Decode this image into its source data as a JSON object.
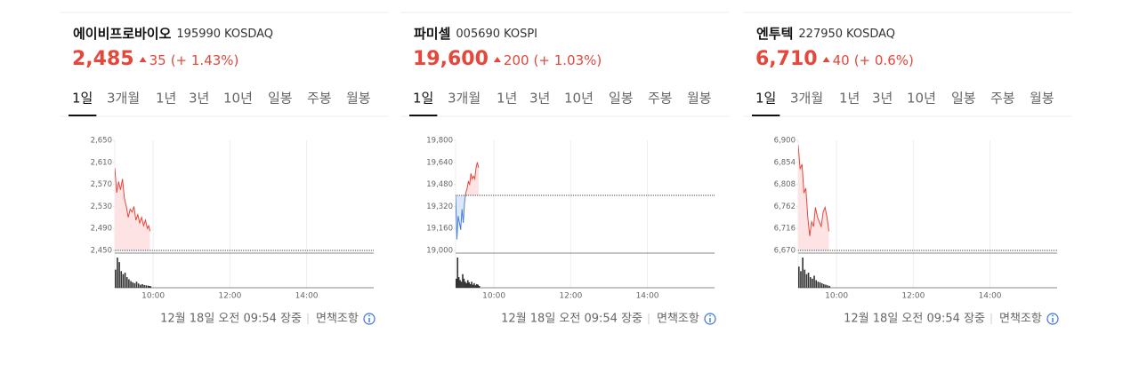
{
  "widgets": [
    {
      "name": "에이비프로바이오",
      "code": "195990",
      "market": "KOSDAQ",
      "price": "2,485",
      "change": "35",
      "change_rate": "(+ 1.43%)",
      "tabs": [
        "1일",
        "3개월",
        "1년",
        "3년",
        "10년",
        "일봉",
        "주봉",
        "월봉"
      ],
      "chart": {
        "type": "line",
        "ylim": [
          2450,
          2650
        ],
        "yticks": [
          {
            "value": 2450,
            "label": "2,450"
          },
          {
            "value": 2490,
            "label": "2,490"
          },
          {
            "value": 2530,
            "label": "2,530"
          },
          {
            "value": 2570,
            "label": "2,570"
          },
          {
            "value": 2610,
            "label": "2,610"
          },
          {
            "value": 2650,
            "label": "2,650"
          }
        ],
        "xlim": [
          540,
          945
        ],
        "xticks": [
          {
            "value": 600,
            "label": "10:00"
          },
          {
            "value": 720,
            "label": "12:00"
          },
          {
            "value": 840,
            "label": "14:00"
          }
        ],
        "x": [
          540,
          543,
          546,
          549,
          552,
          555,
          558,
          561,
          564,
          567,
          570,
          573,
          576,
          579,
          582,
          585,
          588,
          591,
          593,
          595
        ],
        "values": [
          2600,
          2555,
          2575,
          2560,
          2580,
          2545,
          2530,
          2510,
          2525,
          2520,
          2530,
          2505,
          2515,
          2500,
          2510,
          2495,
          2505,
          2490,
          2495,
          2485
        ],
        "base": 2450,
        "volume": [
          60,
          100,
          85,
          55,
          45,
          50,
          35,
          28,
          22,
          18,
          15,
          20,
          14,
          10,
          12,
          9,
          8,
          7,
          6,
          5
        ]
      },
      "footer": {
        "time": "12월 18일 오전 09:54 장중",
        "disclaimer": "면책조항"
      }
    },
    {
      "name": "파미셀",
      "code": "005690",
      "market": "KOSPI",
      "price": "19,600",
      "change": "200",
      "change_rate": "(+ 1.03%)",
      "tabs": [
        "1일",
        "3개월",
        "1년",
        "3년",
        "10년",
        "일봉",
        "주봉",
        "월봉"
      ],
      "chart": {
        "type": "line",
        "ylim": [
          19000,
          19800
        ],
        "yticks": [
          {
            "value": 19000,
            "label": "19,000"
          },
          {
            "value": 19160,
            "label": "19,160"
          },
          {
            "value": 19320,
            "label": "19,320"
          },
          {
            "value": 19480,
            "label": "19,480"
          },
          {
            "value": 19640,
            "label": "19,640"
          },
          {
            "value": 19800,
            "label": "19,800"
          }
        ],
        "xlim": [
          540,
          945
        ],
        "xticks": [
          {
            "value": 600,
            "label": "10:00"
          },
          {
            "value": 720,
            "label": "12:00"
          },
          {
            "value": 840,
            "label": "14:00"
          }
        ],
        "x": [
          540,
          542,
          544,
          546,
          548,
          550,
          552,
          554,
          556,
          558,
          560,
          562,
          564,
          566,
          568,
          570,
          572,
          574,
          576
        ],
        "values": [
          19400,
          19080,
          19250,
          19200,
          19150,
          19300,
          19200,
          19350,
          19420,
          19450,
          19500,
          19480,
          19560,
          19520,
          19540,
          19520,
          19600,
          19640,
          19600
        ],
        "base": 19400,
        "volume": [
          30,
          100,
          35,
          25,
          20,
          45,
          30,
          20,
          15,
          25,
          18,
          12,
          20,
          10,
          15,
          8,
          12,
          10,
          6
        ]
      },
      "footer": {
        "time": "12월 18일 오전 09:54 장중",
        "disclaimer": "면책조항"
      }
    },
    {
      "name": "엔투텍",
      "code": "227950",
      "market": "KOSDAQ",
      "price": "6,710",
      "change": "40",
      "change_rate": "(+ 0.6%)",
      "tabs": [
        "1일",
        "3개월",
        "1년",
        "3년",
        "10년",
        "일봉",
        "주봉",
        "월봉"
      ],
      "chart": {
        "type": "line",
        "ylim": [
          6670,
          6900
        ],
        "yticks": [
          {
            "value": 6670,
            "label": "6,670"
          },
          {
            "value": 6716,
            "label": "6,716"
          },
          {
            "value": 6762,
            "label": "6,762"
          },
          {
            "value": 6808,
            "label": "6,808"
          },
          {
            "value": 6854,
            "label": "6,854"
          },
          {
            "value": 6900,
            "label": "6,900"
          }
        ],
        "xlim": [
          540,
          945
        ],
        "xticks": [
          {
            "value": 600,
            "label": "10:00"
          },
          {
            "value": 720,
            "label": "12:00"
          },
          {
            "value": 840,
            "label": "14:00"
          }
        ],
        "x": [
          540,
          543,
          546,
          549,
          552,
          555,
          558,
          561,
          564,
          567,
          570,
          573,
          576,
          579,
          582,
          585,
          588
        ],
        "values": [
          6890,
          6840,
          6850,
          6790,
          6800,
          6740,
          6700,
          6730,
          6720,
          6760,
          6740,
          6730,
          6720,
          6750,
          6760,
          6740,
          6710
        ],
        "base": 6670,
        "volume": [
          70,
          55,
          100,
          60,
          45,
          50,
          35,
          30,
          40,
          25,
          20,
          18,
          15,
          12,
          10,
          8,
          6
        ]
      },
      "footer": {
        "time": "12월 18일 오전 09:54 장중",
        "disclaimer": "면책조항"
      }
    }
  ]
}
